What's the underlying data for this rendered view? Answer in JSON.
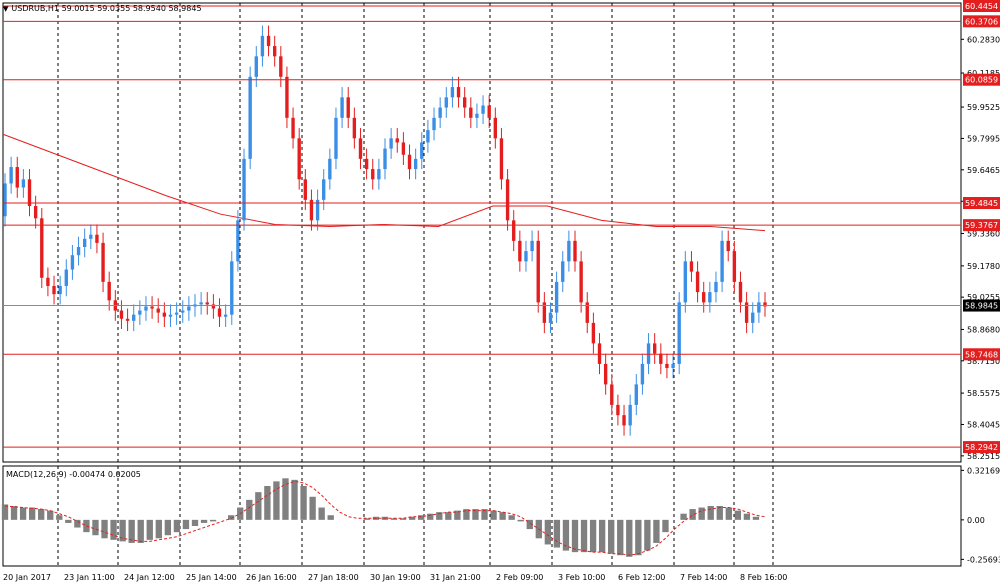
{
  "header": {
    "title": "USDRUB,H1  59.0015 59.0355 58.9540 58.9845",
    "menu_icon": "triangle-down-icon"
  },
  "macd_header": "MACD(12,26,9) -0.00474 0.02005",
  "colors": {
    "bull": "#3a8ee6",
    "bear": "#e41e1e",
    "level_line": "#e41e1e",
    "ma_line": "#e41e1e",
    "current_line": "#7a8fa6",
    "grid": "#000000",
    "macd_hist": "#808080",
    "macd_signal": "#e41e1e"
  },
  "chart_data": {
    "type": "candlestick",
    "symbol": "USDRUB",
    "timeframe": "H1",
    "ohlc_last": {
      "open": 59.0015,
      "high": 59.0355,
      "low": 58.954,
      "close": 58.9845
    },
    "price_ticks": [
      "60.2830",
      "60.1185",
      "59.9525",
      "59.7995",
      "59.6465",
      "59.4930",
      "59.3360",
      "59.1780",
      "59.0255",
      "58.8680",
      "58.7150",
      "58.5575",
      "58.4045",
      "58.2515"
    ],
    "price_range": [
      58.2215,
      60.46
    ],
    "time_ticks": [
      "20 Jan 2017",
      "23 Jan 11:00",
      "24 Jan 12:00",
      "25 Jan 14:00",
      "26 Jan 16:00",
      "27 Jan 18:00",
      "30 Jan 19:00",
      "31 Jan 21:00",
      "2 Feb 09:00",
      "3 Feb 10:00",
      "6 Feb 12:00",
      "7 Feb 14:00",
      "8 Feb 16:00"
    ],
    "levels": [
      {
        "label": "60.4454",
        "value": 60.4454
      },
      {
        "label": "60.3706",
        "value": 60.3706
      },
      {
        "label": "60.0859",
        "value": 60.0859
      },
      {
        "label": "59.4845",
        "value": 59.4845
      },
      {
        "label": "59.3767",
        "value": 59.3767
      },
      {
        "label": "58.7468",
        "value": 58.7468
      },
      {
        "label": "58.2942",
        "value": 58.2942
      }
    ],
    "current_price": {
      "label": "58.9845",
      "value": 58.9845
    },
    "moving_average": [
      59.82,
      59.72,
      59.62,
      59.52,
      59.43,
      59.38,
      59.37,
      59.38,
      59.37,
      59.47,
      59.47,
      59.4,
      59.37,
      59.37,
      59.35
    ],
    "candles": [
      [
        59.42,
        59.58
      ],
      [
        59.58,
        59.66
      ],
      [
        59.66,
        59.56
      ],
      [
        59.56,
        59.6
      ],
      [
        59.6,
        59.47
      ],
      [
        59.47,
        59.41
      ],
      [
        59.41,
        59.12
      ],
      [
        59.12,
        59.08
      ],
      [
        59.08,
        59.04
      ],
      [
        59.04,
        59.08
      ],
      [
        59.08,
        59.16
      ],
      [
        59.16,
        59.23
      ],
      [
        59.23,
        59.27
      ],
      [
        59.27,
        59.31
      ],
      [
        59.31,
        59.33
      ],
      [
        59.33,
        59.29
      ],
      [
        59.29,
        59.1
      ],
      [
        59.1,
        59.01
      ],
      [
        59.01,
        58.96
      ],
      [
        58.96,
        58.92
      ],
      [
        58.92,
        58.91
      ],
      [
        58.91,
        58.94
      ],
      [
        58.94,
        58.96
      ],
      [
        58.96,
        58.98
      ],
      [
        58.98,
        58.97
      ],
      [
        58.97,
        58.95
      ],
      [
        58.95,
        58.93
      ],
      [
        58.93,
        58.94
      ],
      [
        58.94,
        58.95
      ],
      [
        58.95,
        58.96
      ],
      [
        58.96,
        58.98
      ],
      [
        58.98,
        58.99
      ],
      [
        58.99,
        59.0
      ],
      [
        59.0,
        58.99
      ],
      [
        58.99,
        58.97
      ],
      [
        58.97,
        58.93
      ],
      [
        58.93,
        58.94
      ],
      [
        58.94,
        59.2
      ],
      [
        59.2,
        59.4
      ],
      [
        59.4,
        59.7
      ],
      [
        59.7,
        60.1
      ],
      [
        60.1,
        60.2
      ],
      [
        60.2,
        60.3
      ],
      [
        60.3,
        60.25
      ],
      [
        60.25,
        60.2
      ],
      [
        60.2,
        60.1
      ],
      [
        60.1,
        59.9
      ],
      [
        59.9,
        59.8
      ],
      [
        59.8,
        59.6
      ],
      [
        59.6,
        59.5
      ],
      [
        59.5,
        59.4
      ],
      [
        59.4,
        59.5
      ],
      [
        59.5,
        59.6
      ],
      [
        59.6,
        59.7
      ],
      [
        59.7,
        59.9
      ],
      [
        59.9,
        60.0
      ],
      [
        60.0,
        59.9
      ],
      [
        59.9,
        59.8
      ],
      [
        59.8,
        59.7
      ],
      [
        59.7,
        59.65
      ],
      [
        59.65,
        59.6
      ],
      [
        59.6,
        59.65
      ],
      [
        59.65,
        59.75
      ],
      [
        59.75,
        59.8
      ],
      [
        59.8,
        59.78
      ],
      [
        59.78,
        59.72
      ],
      [
        59.72,
        59.65
      ],
      [
        59.65,
        59.7
      ],
      [
        59.7,
        59.78
      ],
      [
        59.78,
        59.84
      ],
      [
        59.84,
        59.9
      ],
      [
        59.9,
        59.95
      ],
      [
        59.95,
        60.0
      ],
      [
        60.0,
        60.05
      ],
      [
        60.05,
        60.0
      ],
      [
        60.0,
        59.95
      ],
      [
        59.95,
        59.9
      ],
      [
        59.9,
        59.92
      ],
      [
        59.92,
        59.96
      ],
      [
        59.96,
        59.9
      ],
      [
        59.9,
        59.8
      ],
      [
        59.8,
        59.6
      ],
      [
        59.6,
        59.4
      ],
      [
        59.4,
        59.3
      ],
      [
        59.3,
        59.2
      ],
      [
        59.2,
        59.25
      ],
      [
        59.25,
        59.3
      ],
      [
        59.3,
        59.0
      ],
      [
        59.0,
        58.9
      ],
      [
        58.9,
        58.95
      ],
      [
        58.95,
        59.1
      ],
      [
        59.1,
        59.2
      ],
      [
        59.2,
        59.3
      ],
      [
        59.3,
        59.2
      ],
      [
        59.2,
        59.0
      ],
      [
        59.0,
        58.9
      ],
      [
        58.9,
        58.8
      ],
      [
        58.8,
        58.7
      ],
      [
        58.7,
        58.6
      ],
      [
        58.6,
        58.5
      ],
      [
        58.5,
        58.45
      ],
      [
        58.45,
        58.4
      ],
      [
        58.4,
        58.5
      ],
      [
        58.5,
        58.6
      ],
      [
        58.6,
        58.7
      ],
      [
        58.7,
        58.8
      ],
      [
        58.8,
        58.75
      ],
      [
        58.75,
        58.7
      ],
      [
        58.7,
        58.68
      ],
      [
        58.68,
        58.7
      ],
      [
        58.7,
        59.0
      ],
      [
        59.0,
        59.2
      ],
      [
        59.2,
        59.15
      ],
      [
        59.15,
        59.05
      ],
      [
        59.05,
        59.0
      ],
      [
        59.0,
        59.05
      ],
      [
        59.05,
        59.1
      ],
      [
        59.1,
        59.3
      ],
      [
        59.3,
        59.25
      ],
      [
        59.25,
        59.1
      ],
      [
        59.1,
        59.0
      ],
      [
        59.0,
        58.9
      ],
      [
        58.9,
        58.95
      ],
      [
        58.95,
        59.0
      ],
      [
        59.0,
        58.98
      ]
    ],
    "macd_ticks": [
      "0.32169",
      "0.00",
      "-0.25693"
    ],
    "macd_range": [
      -0.3,
      0.35
    ],
    "macd_hist": [
      0.1,
      0.09,
      0.08,
      0.08,
      0.07,
      0.06,
      0.03,
      -0.02,
      -0.05,
      -0.08,
      -0.1,
      -0.12,
      -0.13,
      -0.14,
      -0.15,
      -0.15,
      -0.13,
      -0.12,
      -0.1,
      -0.08,
      -0.06,
      -0.04,
      -0.02,
      -0.01,
      0.0,
      0.03,
      0.08,
      0.13,
      0.18,
      0.22,
      0.25,
      0.27,
      0.26,
      0.22,
      0.15,
      0.08,
      0.03,
      0.0,
      0.0,
      0.0,
      0.01,
      0.02,
      0.02,
      0.01,
      0.01,
      0.02,
      0.03,
      0.04,
      0.05,
      0.05,
      0.06,
      0.07,
      0.07,
      0.07,
      0.06,
      0.05,
      0.03,
      -0.01,
      -0.06,
      -0.12,
      -0.16,
      -0.18,
      -0.2,
      -0.21,
      -0.21,
      -0.21,
      -0.21,
      -0.22,
      -0.23,
      -0.24,
      -0.23,
      -0.2,
      -0.15,
      -0.08,
      0.0,
      0.04,
      0.07,
      0.08,
      0.09,
      0.09,
      0.08,
      0.06,
      0.04,
      0.02,
      0.0
    ],
    "macd_signal": [
      0.09,
      0.085,
      0.08,
      0.075,
      0.07,
      0.06,
      0.04,
      0.02,
      -0.01,
      -0.04,
      -0.06,
      -0.08,
      -0.1,
      -0.12,
      -0.13,
      -0.14,
      -0.14,
      -0.13,
      -0.12,
      -0.11,
      -0.09,
      -0.07,
      -0.05,
      -0.03,
      -0.01,
      0.01,
      0.04,
      0.08,
      0.12,
      0.16,
      0.2,
      0.23,
      0.25,
      0.24,
      0.21,
      0.16,
      0.1,
      0.05,
      0.02,
      0.01,
      0.01,
      0.01,
      0.01,
      0.01,
      0.01,
      0.02,
      0.02,
      0.03,
      0.04,
      0.05,
      0.05,
      0.06,
      0.06,
      0.06,
      0.06,
      0.05,
      0.04,
      0.02,
      -0.02,
      -0.06,
      -0.1,
      -0.14,
      -0.17,
      -0.19,
      -0.2,
      -0.21,
      -0.21,
      -0.22,
      -0.22,
      -0.23,
      -0.22,
      -0.2,
      -0.17,
      -0.12,
      -0.06,
      -0.01,
      0.03,
      0.06,
      0.07,
      0.08,
      0.08,
      0.07,
      0.05,
      0.03,
      0.02
    ]
  }
}
